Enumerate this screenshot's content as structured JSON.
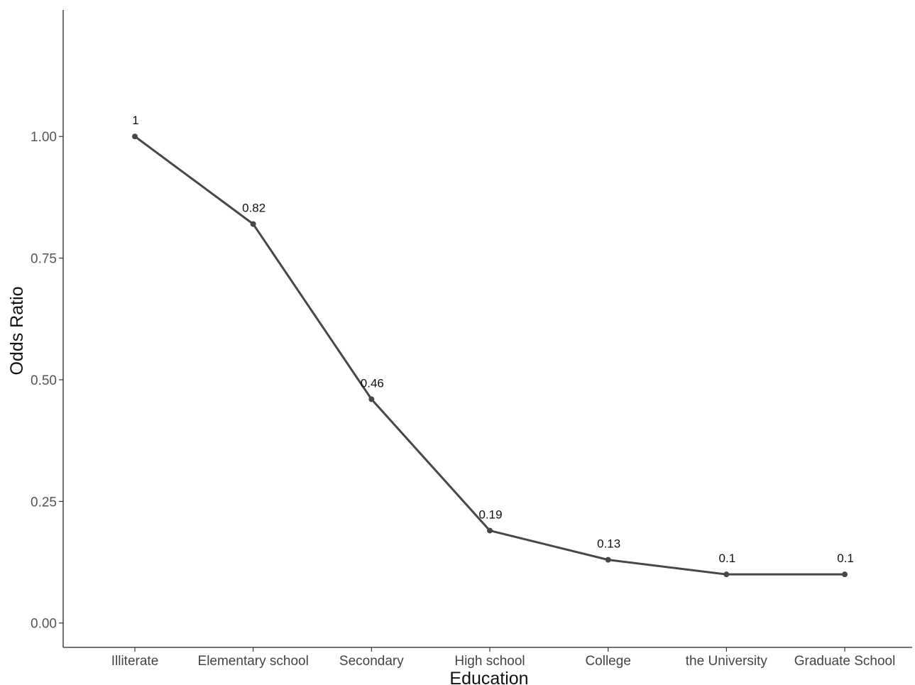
{
  "chart_data": {
    "type": "line",
    "xlabel": "Education",
    "ylabel": "Odds Ratio",
    "categories": [
      "Illiterate",
      "Elementary school",
      "Secondary",
      "High school",
      "College",
      "the University",
      "Graduate School"
    ],
    "series": [
      {
        "values": [
          1,
          0.82,
          0.46,
          0.19,
          0.13,
          0.1,
          0.1
        ],
        "labels": [
          "1",
          "0.82",
          "0.46",
          "0.19",
          "0.13",
          "0.1",
          "0.1"
        ]
      }
    ],
    "y_ticks": [
      "0.00",
      "0.25",
      "0.50",
      "0.75",
      "1.00"
    ],
    "y_tick_values": [
      0,
      0.25,
      0.5,
      0.75,
      1.0
    ],
    "ylim": [
      -0.05,
      1.26
    ],
    "grid": false,
    "line_color": "#474747",
    "point_color": "#474747"
  }
}
